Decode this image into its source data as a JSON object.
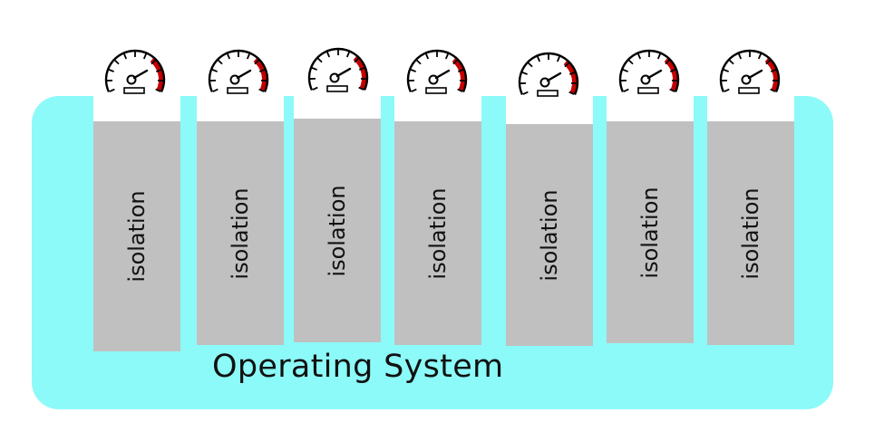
{
  "os_label": "Operating System",
  "block_label": "isolation",
  "colors": {
    "os_background": "#8cfaf8",
    "block": "#c0c0c0",
    "gauge_redline": "#c40000",
    "gauge_stroke": "#000000"
  },
  "gauge_icon": "speedometer-icon",
  "containers": [
    {
      "label": "isolation"
    },
    {
      "label": "isolation"
    },
    {
      "label": "isolation"
    },
    {
      "label": "isolation"
    },
    {
      "label": "isolation"
    },
    {
      "label": "isolation"
    },
    {
      "label": "isolation"
    }
  ]
}
